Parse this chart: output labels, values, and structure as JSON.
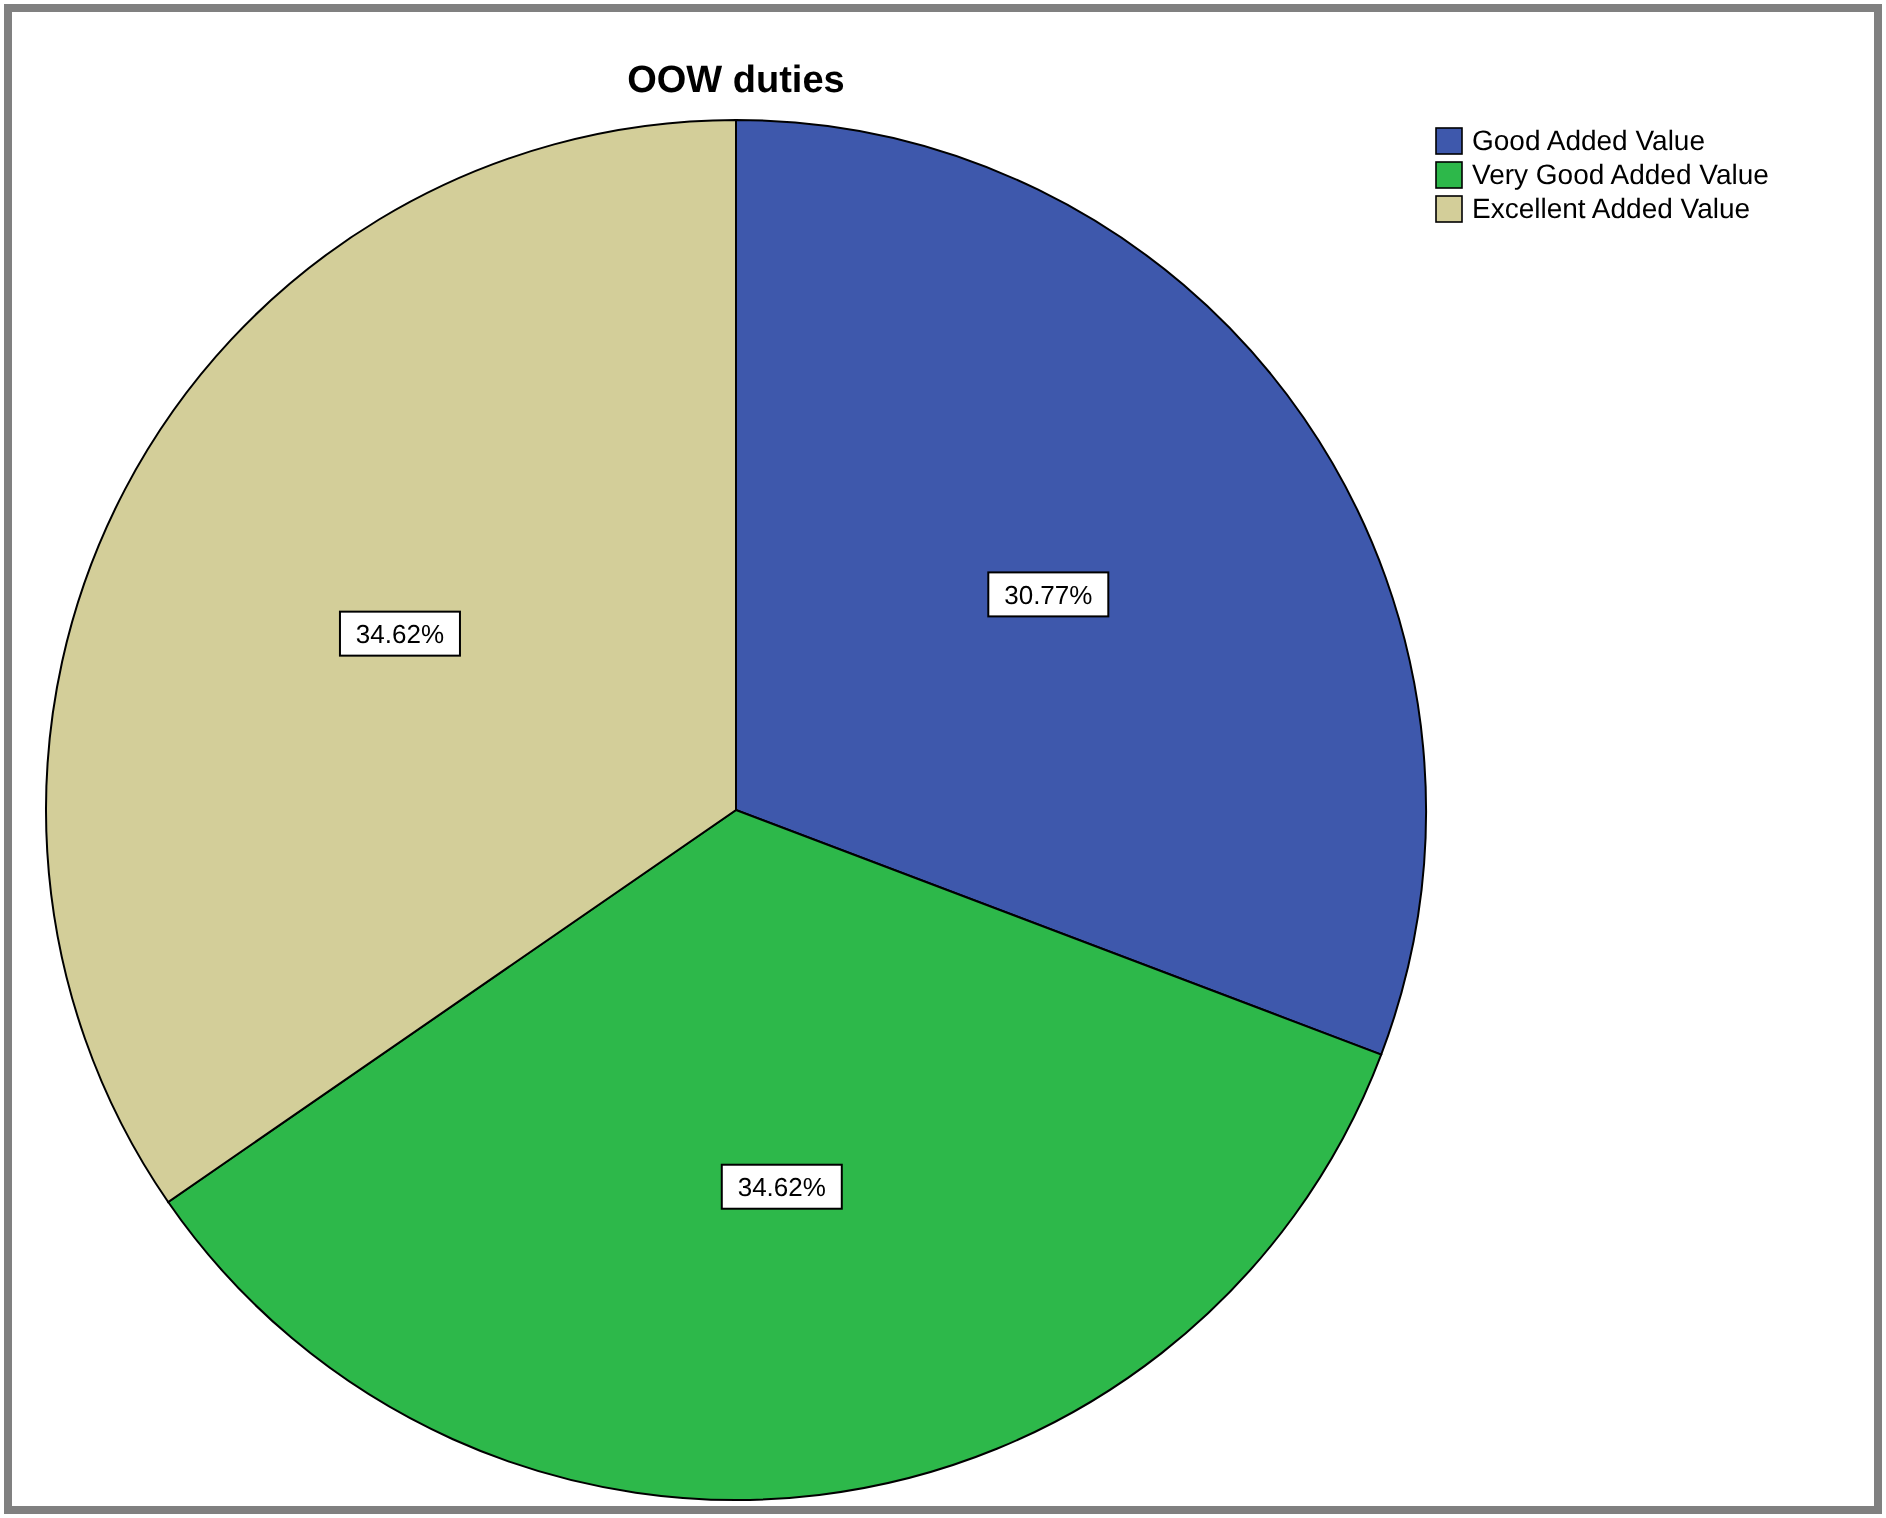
{
  "chart_data": {
    "type": "pie",
    "title": "OOW duties",
    "categories": [
      "Good Added Value",
      "Very Good Added Value",
      "Excellent Added Value"
    ],
    "values": [
      30.77,
      34.62,
      34.62
    ],
    "colors": [
      "#3e58ac",
      "#2db84a",
      "#d3ce99"
    ],
    "value_labels": [
      "30.77%",
      "34.62%",
      "34.62%"
    ],
    "legend": "top right"
  }
}
